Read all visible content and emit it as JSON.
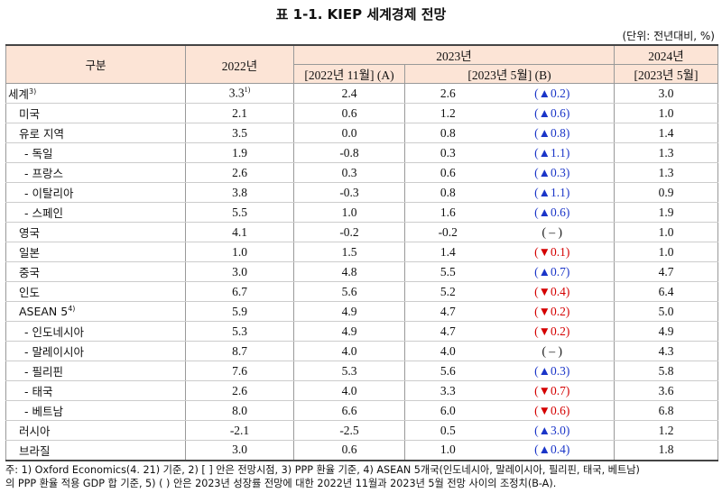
{
  "title": "표 1-1. KIEP 세계경제 전망",
  "unit": "(단위: 전년대비, %)",
  "header": {
    "category": "구분",
    "y2022": "2022년",
    "y2023": "2023년",
    "col_a": "[2022년 11월] (A)",
    "col_b": "[2023년 5월] (B)",
    "y2024": "2024년",
    "col_2024": "[2023년 5월]"
  },
  "rows": [
    {
      "label": "세계",
      "label_sup": "3)",
      "v2022": "3.3",
      "v2022_sup": "1)",
      "a": "2.4",
      "b": "2.6",
      "change": "(▲0.2)",
      "change_color": "#1a35c8",
      "v2024": "3.0"
    },
    {
      "label": "미국",
      "v2022": "2.1",
      "a": "0.6",
      "b": "1.2",
      "change": "(▲0.6)",
      "change_color": "#1a35c8",
      "v2024": "1.0"
    },
    {
      "label": "유로 지역",
      "v2022": "3.5",
      "a": "0.0",
      "b": "0.8",
      "change": "(▲0.8)",
      "change_color": "#1a35c8",
      "v2024": "1.4"
    },
    {
      "label": "- 독일",
      "v2022": "1.9",
      "a": "-0.8",
      "b": "0.3",
      "change": "(▲1.1)",
      "change_color": "#1a35c8",
      "v2024": "1.3"
    },
    {
      "label": "- 프랑스",
      "v2022": "2.6",
      "a": "0.3",
      "b": "0.6",
      "change": "(▲0.3)",
      "change_color": "#1a35c8",
      "v2024": "1.3"
    },
    {
      "label": "- 이탈리아",
      "v2022": "3.8",
      "a": "-0.3",
      "b": "0.8",
      "change": "(▲1.1)",
      "change_color": "#1a35c8",
      "v2024": "0.9"
    },
    {
      "label": "- 스페인",
      "v2022": "5.5",
      "a": "1.0",
      "b": "1.6",
      "change": "(▲0.6)",
      "change_color": "#1a35c8",
      "v2024": "1.9"
    },
    {
      "label": "영국",
      "v2022": "4.1",
      "a": "-0.2",
      "b": "-0.2",
      "change": "( – )",
      "change_color": "#111111",
      "v2024": "1.0"
    },
    {
      "label": "일본",
      "v2022": "1.0",
      "a": "1.5",
      "b": "1.4",
      "change": "(▼0.1)",
      "change_color": "#d40000",
      "v2024": "1.0"
    },
    {
      "label": "중국",
      "v2022": "3.0",
      "a": "4.8",
      "b": "5.5",
      "change": "(▲0.7)",
      "change_color": "#1a35c8",
      "v2024": "4.7"
    },
    {
      "label": "인도",
      "v2022": "6.7",
      "a": "5.6",
      "b": "5.2",
      "change": "(▼0.4)",
      "change_color": "#d40000",
      "v2024": "6.4"
    },
    {
      "label": "ASEAN 5",
      "label_sup": "4)",
      "v2022": "5.9",
      "a": "4.9",
      "b": "4.7",
      "change": "(▼0.2)",
      "change_color": "#d40000",
      "v2024": "5.0"
    },
    {
      "label": "- 인도네시아",
      "v2022": "5.3",
      "a": "4.9",
      "b": "4.7",
      "change": "(▼0.2)",
      "change_color": "#d40000",
      "v2024": "4.9"
    },
    {
      "label": "- 말레이시아",
      "v2022": "8.7",
      "a": "4.0",
      "b": "4.0",
      "change": "( – )",
      "change_color": "#111111",
      "v2024": "4.3"
    },
    {
      "label": "- 필리핀",
      "v2022": "7.6",
      "a": "5.3",
      "b": "5.6",
      "change": "(▲0.3)",
      "change_color": "#1a35c8",
      "v2024": "5.8"
    },
    {
      "label": "- 태국",
      "v2022": "2.6",
      "a": "4.0",
      "b": "3.3",
      "change": "(▼0.7)",
      "change_color": "#d40000",
      "v2024": "3.6"
    },
    {
      "label": "- 베트남",
      "v2022": "8.0",
      "a": "6.6",
      "b": "6.0",
      "change": "(▼0.6)",
      "change_color": "#d40000",
      "v2024": "6.8"
    },
    {
      "label": "러시아",
      "v2022": "-2.1",
      "a": "-2.5",
      "b": "0.5",
      "change": "(▲3.0)",
      "change_color": "#1a35c8",
      "v2024": "1.2"
    },
    {
      "label": "브라질",
      "v2022": "3.0",
      "a": "0.6",
      "b": "1.0",
      "change": "(▲0.4)",
      "change_color": "#1a35c8",
      "v2024": "1.8"
    }
  ],
  "notes": [
    "주: 1) Oxford Economics(4. 21) 기준, 2) [ ] 안은 전망시점, 3) PPP 환율 기준, 4) ASEAN 5개국(인도네시아, 말레이시아, 필리핀, 태국, 베트남)",
    "의 PPP 환율 적용 GDP 합 기준, 5) ( ) 안은 2023년 성장률 전망에 대한 2022년 11월과 2023년 5월 전망 사이의 조정치(B-A)."
  ]
}
